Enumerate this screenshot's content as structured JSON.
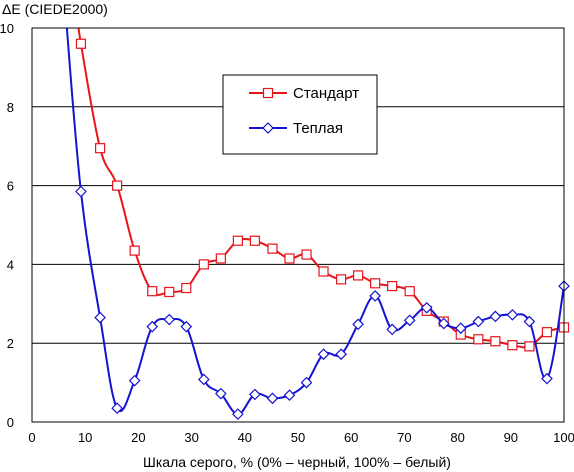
{
  "chart_data": {
    "type": "line",
    "ylabel": "ΔE (CIEDE2000)",
    "xlabel": "Шкала серого, % (0% – черный, 100% – белый)",
    "xlim": [
      0,
      100
    ],
    "ylim": [
      0,
      10
    ],
    "x_ticks": [
      0,
      10,
      20,
      30,
      40,
      50,
      60,
      70,
      80,
      90,
      100
    ],
    "y_ticks": [
      0,
      2,
      4,
      6,
      8,
      10
    ],
    "grid": "horizontal",
    "legend_position": "top-center",
    "series": [
      {
        "name": "Стандарт",
        "color": "#e8141b",
        "marker": "square",
        "points": [
          [
            9.2,
            9.6
          ],
          [
            12.8,
            6.95
          ],
          [
            16.0,
            6.0
          ],
          [
            19.3,
            4.35
          ],
          [
            22.6,
            3.32
          ],
          [
            25.8,
            3.3
          ],
          [
            29.0,
            3.4
          ],
          [
            32.3,
            4.0
          ],
          [
            35.5,
            4.15
          ],
          [
            38.7,
            4.6
          ],
          [
            41.9,
            4.6
          ],
          [
            45.2,
            4.4
          ],
          [
            48.4,
            4.15
          ],
          [
            51.6,
            4.25
          ],
          [
            54.8,
            3.82
          ],
          [
            58.1,
            3.62
          ],
          [
            61.3,
            3.72
          ],
          [
            64.5,
            3.52
          ],
          [
            67.7,
            3.45
          ],
          [
            71.0,
            3.32
          ],
          [
            74.2,
            2.82
          ],
          [
            77.4,
            2.55
          ],
          [
            80.6,
            2.22
          ],
          [
            83.9,
            2.1
          ],
          [
            87.1,
            2.05
          ],
          [
            90.3,
            1.95
          ],
          [
            93.5,
            1.92
          ],
          [
            96.8,
            2.28
          ],
          [
            100.0,
            2.4
          ]
        ]
      },
      {
        "name": "Теплая",
        "color": "#1414d2",
        "marker": "diamond",
        "points": [
          [
            9.2,
            5.85
          ],
          [
            12.8,
            2.65
          ],
          [
            16.0,
            0.35
          ],
          [
            19.3,
            1.05
          ],
          [
            22.6,
            2.42
          ],
          [
            25.8,
            2.6
          ],
          [
            29.0,
            2.42
          ],
          [
            32.3,
            1.08
          ],
          [
            35.5,
            0.72
          ],
          [
            38.7,
            0.2
          ],
          [
            41.9,
            0.7
          ],
          [
            45.2,
            0.6
          ],
          [
            48.4,
            0.68
          ],
          [
            51.6,
            1.0
          ],
          [
            54.8,
            1.72
          ],
          [
            58.1,
            1.72
          ],
          [
            61.3,
            2.48
          ],
          [
            64.5,
            3.2
          ],
          [
            67.7,
            2.35
          ],
          [
            71.0,
            2.58
          ],
          [
            74.2,
            2.9
          ],
          [
            77.4,
            2.5
          ],
          [
            80.6,
            2.38
          ],
          [
            83.9,
            2.55
          ],
          [
            87.1,
            2.68
          ],
          [
            90.3,
            2.72
          ],
          [
            93.5,
            2.55
          ],
          [
            96.8,
            1.1
          ],
          [
            100.0,
            3.45
          ]
        ]
      }
    ]
  }
}
